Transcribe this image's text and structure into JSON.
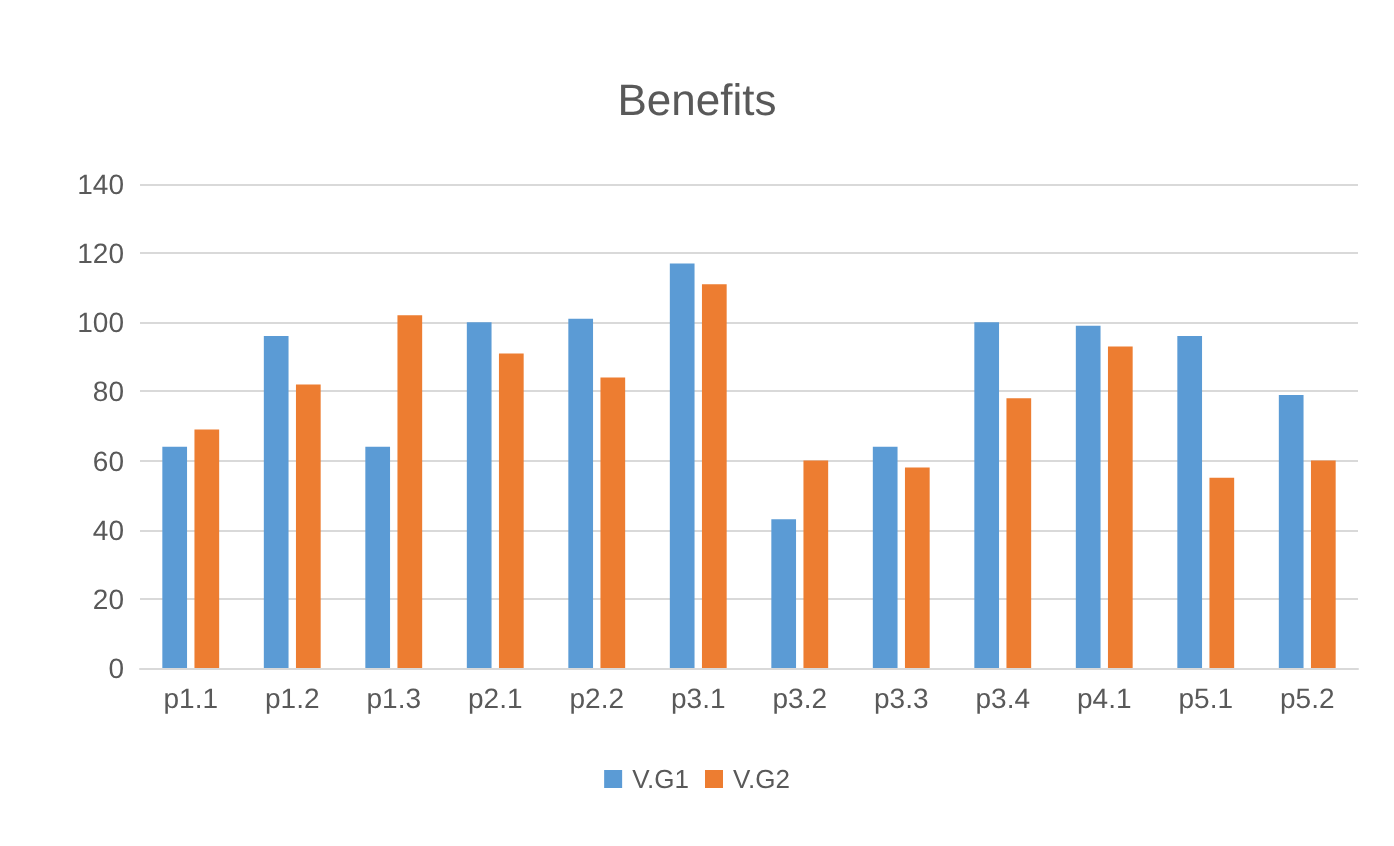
{
  "chart_data": {
    "type": "bar",
    "title": "Benefits",
    "categories": [
      "p1.1",
      "p1.2",
      "p1.3",
      "p2.1",
      "p2.2",
      "p3.1",
      "p3.2",
      "p3.3",
      "p3.4",
      "p4.1",
      "p5.1",
      "p5.2"
    ],
    "series": [
      {
        "name": "V.G1",
        "color": "#5b9bd5",
        "values": [
          64,
          96,
          64,
          100,
          101,
          117,
          43,
          64,
          100,
          99,
          96,
          79
        ]
      },
      {
        "name": "V.G2",
        "color": "#ed7d31",
        "values": [
          69,
          82,
          102,
          91,
          84,
          111,
          60,
          58,
          78,
          93,
          55,
          60
        ]
      }
    ],
    "ylim": [
      0,
      140
    ],
    "yticks": [
      0,
      20,
      40,
      60,
      80,
      100,
      120,
      140
    ],
    "grid": "y",
    "legend": "bottom"
  }
}
